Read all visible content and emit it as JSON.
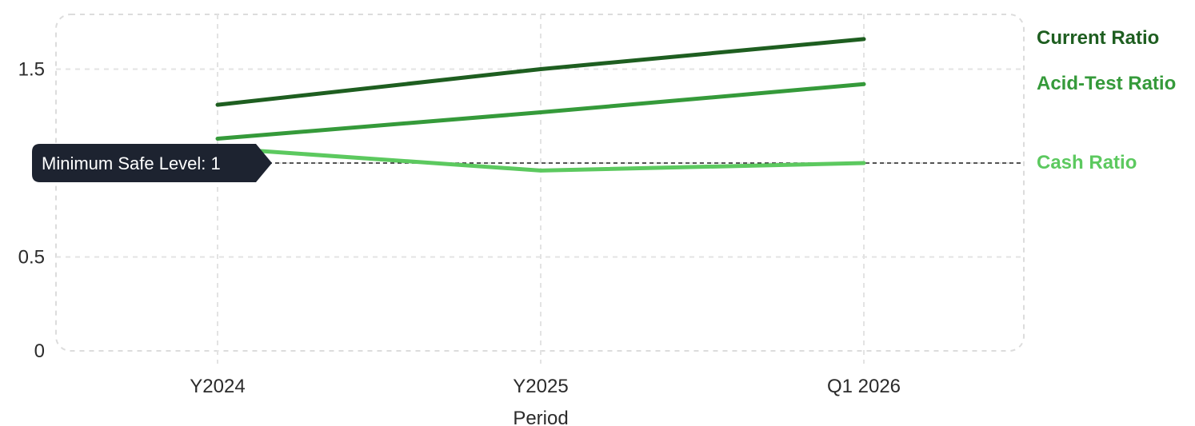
{
  "chart_data": {
    "type": "line",
    "categories": [
      "Y2024",
      "Y2025",
      "Q1 2026"
    ],
    "xlabel": "Period",
    "ylabel": "",
    "ylim": [
      0,
      1.8
    ],
    "yticks": [
      0,
      0.5,
      1.5
    ],
    "grid": true,
    "legend": "right-end labels",
    "series": [
      {
        "name": "Current Ratio",
        "values": [
          1.31,
          1.5,
          1.66
        ],
        "color": "#1e5e20"
      },
      {
        "name": "Acid-Test Ratio",
        "values": [
          1.13,
          1.27,
          1.42
        ],
        "color": "#359a3a"
      },
      {
        "name": "Cash Ratio",
        "values": [
          1.08,
          0.96,
          1.0
        ],
        "color": "#5cc95f"
      }
    ],
    "reference_line": {
      "label": "Minimum Safe Level: 1",
      "value": 1,
      "color": "#222222"
    }
  }
}
